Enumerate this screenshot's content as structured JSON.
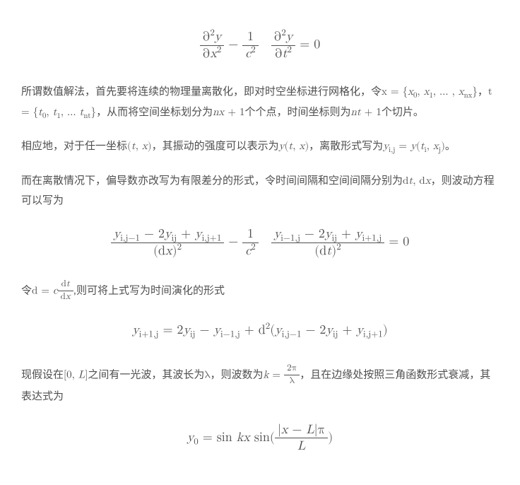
{
  "equations": {
    "wave_pde": {
      "frac1_num": "∂<sup>2</sup><i>y</i>",
      "frac1_den": "∂<i>x</i><sup>2</sup>",
      "minus": " − ",
      "frac2a_num": "1",
      "frac2a_den": "<i>c</i><sup>2</sup>",
      "frac2b_num": "∂<sup>2</sup><i>y</i>",
      "frac2b_den": "∂<i>t</i><sup>2</sup>",
      "tail": " = 0"
    },
    "discrete": {
      "lhs_num": "<i>y</i><sub>i,j−1</sub> − 2<i>y</i><sub>ij</sub> + <i>y</i><sub>i,j+1</sub>",
      "lhs_den": "(d<i>x</i>)<sup>2</sup>",
      "minus": " − ",
      "coef_num": "1",
      "coef_den": "<i>c</i><sup>2</sup>",
      "rhs_num": "<i>y</i><sub>i−1,j</sub> − 2<i>y</i><sub>ij</sub> + <i>y</i><sub>i+1,j</sub>",
      "rhs_den": "(d<i>t</i>)<sup>2</sup>",
      "tail": " = 0"
    },
    "time_evo": "<i>y</i><sub>i+1,j</sub> = 2<i>y</i><sub>ij</sub> − <i>y</i><sub>i−1,j</sub> + d<sup>2</sup>(<i>y</i><sub>i,j−1</sub> − 2<i>y</i><sub>ij</sub> + <i>y</i><sub>i,j+1</sub>)",
    "y0": {
      "pre": "<i>y</i><sub>0</sub> = sin <i>kx</i> sin(",
      "frac_num": "|<i>x</i> − <i>L</i>|π",
      "frac_den": "<i>L</i>",
      "post": ")"
    }
  },
  "paras": {
    "p1_a": "所谓数值解法，首先要将连续的物理量离散化，即对时空坐标进行网格化，令",
    "p1_x": "x = {<i>x</i><sub>0</sub>, <i>x</i><sub>1</sub>, … , <i>x</i><sub>nx</sub>}",
    "p1_b": "，",
    "p1_t": "t = {<i>t</i><sub>0</sub>, <i>t</i><sub>1</sub>, … <i>t</i><sub>nt</sub>}",
    "p1_c": "，从而将空间坐标划分为",
    "p1_nx": "<i>nx</i> + 1",
    "p1_d": "个个点，时间坐标则为",
    "p1_nt": "<i>nt</i> + 1",
    "p1_e": "个切片。",
    "p2_a": "相应地，对于任一坐标",
    "p2_tx": "(<i>t</i>, <i>x</i>)",
    "p2_b": "，其振动的强度可以表示为",
    "p2_ytx": "<i>y</i>(<i>t</i>, <i>x</i>)",
    "p2_c": "，离散形式写为",
    "p2_yij": "<i>y</i><sub>i,j</sub> = <i>y</i>(<i>t</i><sub>i</sub>, <i>x</i><sub>j</sub>)",
    "p2_d": "。",
    "p3_a": "而在离散情况下，偏导数亦改写为有限差分的形式，令时间间隔和空间间隔分别为",
    "p3_dt": "d<i>t</i>, d<i>x</i>",
    "p3_b": "，则波动方程可以写为",
    "p4_a": "令",
    "p4_d_pre": "d = <i>c</i>",
    "p4_d_num": "d<i>t</i>",
    "p4_d_den": "d<i>x</i>",
    "p4_b": ",则可将上式写为时间演化的形式",
    "p5_a": "现假设在",
    "p5_int": "[0, <i>L</i>]",
    "p5_b": "之间有一光波，其波长为",
    "p5_lam": "λ",
    "p5_c": "，则波数为",
    "p5_k_pre": "<i>k</i> = ",
    "p5_k_num": "2π",
    "p5_k_den": "λ",
    "p5_d": "，且在边缘处按照三角函数形式衰减，其表达式为"
  }
}
